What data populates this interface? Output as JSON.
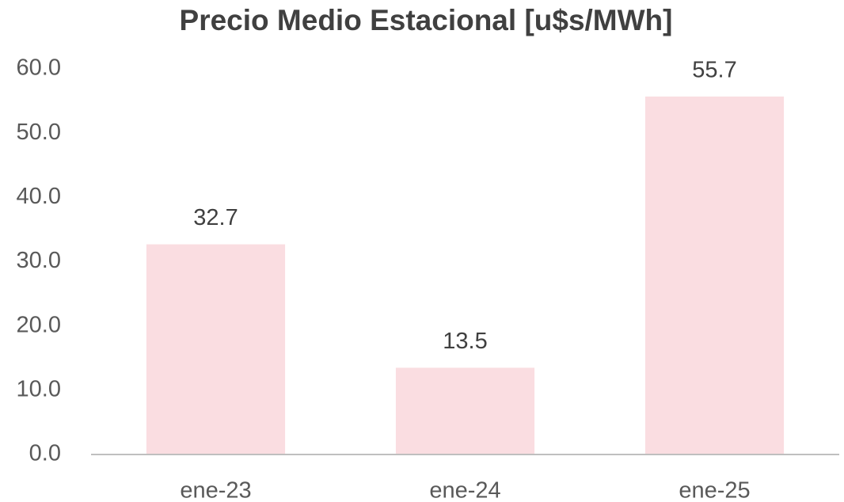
{
  "chart_data": {
    "type": "bar",
    "title": "Precio Medio Estacional [u$s/MWh]",
    "categories": [
      "ene-23",
      "ene-24",
      "ene-25"
    ],
    "values": [
      32.7,
      13.5,
      55.7
    ],
    "color": "#fadde1",
    "ylim": [
      0,
      60
    ],
    "yticks": [
      {
        "value": 0,
        "label": "0.0"
      },
      {
        "value": 10,
        "label": "10.0"
      },
      {
        "value": 20,
        "label": "20.0"
      },
      {
        "value": 30,
        "label": "30.0"
      },
      {
        "value": 40,
        "label": "40.0"
      },
      {
        "value": 50,
        "label": "50.0"
      },
      {
        "value": 60,
        "label": "60.0"
      }
    ],
    "grid": false
  }
}
